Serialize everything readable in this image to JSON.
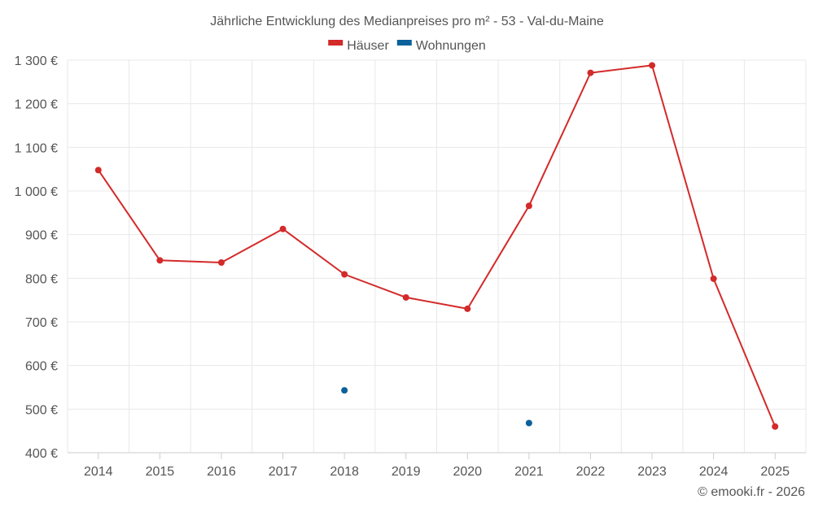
{
  "chart_data": {
    "type": "line",
    "title": "Jährliche Entwicklung des Medianpreises pro m² - 53 - Val-du-Maine",
    "x": [
      "2014",
      "2015",
      "2016",
      "2017",
      "2018",
      "2019",
      "2020",
      "2021",
      "2022",
      "2023",
      "2024",
      "2025"
    ],
    "series": [
      {
        "name": "Häuser",
        "color": "#d32a2a",
        "values": [
          1048,
          841,
          836,
          913,
          809,
          756,
          730,
          966,
          1271,
          1288,
          799,
          460
        ]
      },
      {
        "name": "Wohnungen",
        "color": "#0b619a",
        "values": [
          null,
          null,
          null,
          null,
          543,
          null,
          null,
          468,
          null,
          null,
          null,
          null
        ]
      }
    ],
    "ylim": [
      400,
      1300
    ],
    "yticks": [
      400,
      500,
      600,
      700,
      800,
      900,
      1000,
      1100,
      1200,
      1300
    ],
    "ytick_labels": [
      "400 €",
      "500 €",
      "600 €",
      "700 €",
      "800 €",
      "900 €",
      "1 000 €",
      "1 100 €",
      "1 200 €",
      "1 300 €"
    ],
    "grid": true,
    "legend_position": "top-center"
  },
  "credit": "© emooki.fr - 2026"
}
